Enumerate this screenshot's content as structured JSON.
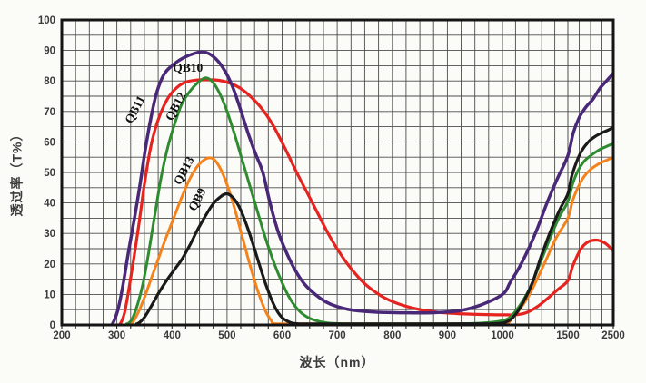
{
  "chart_data": {
    "type": "line",
    "title": "",
    "xlabel": "波长（nm）",
    "ylabel": "透过率（T%）",
    "grid": true,
    "legend_position": "labels-on-curves",
    "x_axis": {
      "unit": "nm",
      "ticks": [
        200,
        300,
        400,
        500,
        600,
        700,
        800,
        900,
        1000,
        1500,
        2500
      ],
      "segments": [
        {
          "from": 200,
          "to": 1000,
          "minor": 25
        },
        {
          "from": 1000,
          "to": 1500,
          "minor": 100
        },
        {
          "from": 1500,
          "to": 2500,
          "minor": 250
        }
      ],
      "note": "scale compressed after 1000 nm"
    },
    "y_axis": {
      "min": 0,
      "max": 100,
      "ticks": [
        0,
        10,
        20,
        30,
        40,
        50,
        60,
        70,
        80,
        90,
        100
      ],
      "minor_step": 5
    },
    "series_labels": [
      {
        "text": "QB11",
        "nm": 339,
        "pct": 70,
        "rotate": -62
      },
      {
        "text": "QB10",
        "nm": 429,
        "pct": 83,
        "rotate": 0
      },
      {
        "text": "QB12",
        "nm": 413,
        "pct": 71,
        "rotate": -62
      },
      {
        "text": "QB13",
        "nm": 428,
        "pct": 50,
        "rotate": -62
      },
      {
        "text": "QB9",
        "nm": 452,
        "pct": 40.5,
        "rotate": -62
      }
    ],
    "series": [
      {
        "name": "QB13",
        "color": "#f5831d",
        "width": 3,
        "points": [
          [
            326,
            0
          ],
          [
            336,
            3
          ],
          [
            348,
            8
          ],
          [
            360,
            14
          ],
          [
            374,
            21
          ],
          [
            388,
            28
          ],
          [
            402,
            34.5
          ],
          [
            416,
            41
          ],
          [
            430,
            47
          ],
          [
            444,
            51.5
          ],
          [
            456,
            53.8
          ],
          [
            468,
            54.8
          ],
          [
            478,
            54
          ],
          [
            490,
            50.5
          ],
          [
            502,
            45
          ],
          [
            514,
            38
          ],
          [
            526,
            30
          ],
          [
            538,
            22
          ],
          [
            550,
            14.5
          ],
          [
            560,
            9
          ],
          [
            570,
            4.5
          ],
          [
            580,
            1.5
          ],
          [
            590,
            0.3
          ],
          [
            650,
            0
          ],
          [
            800,
            0
          ],
          [
            950,
            0
          ],
          [
            1020,
            0.5
          ],
          [
            1070,
            2
          ],
          [
            1130,
            5
          ],
          [
            1200,
            9.5
          ],
          [
            1270,
            15.5
          ],
          [
            1340,
            22
          ],
          [
            1410,
            28.5
          ],
          [
            1500,
            35
          ],
          [
            1600,
            40.5
          ],
          [
            1720,
            45
          ],
          [
            1850,
            48.5
          ],
          [
            2000,
            51
          ],
          [
            2200,
            53
          ],
          [
            2350,
            54
          ],
          [
            2500,
            55
          ]
        ]
      },
      {
        "name": "QB10",
        "color": "#e52420",
        "width": 3.2,
        "points": [
          [
            306,
            0
          ],
          [
            314,
            4
          ],
          [
            322,
            12
          ],
          [
            331,
            22
          ],
          [
            340,
            33
          ],
          [
            350,
            46
          ],
          [
            360,
            57
          ],
          [
            370,
            64.5
          ],
          [
            382,
            70.5
          ],
          [
            395,
            75
          ],
          [
            410,
            78
          ],
          [
            425,
            79.6
          ],
          [
            445,
            80.3
          ],
          [
            465,
            80.4
          ],
          [
            485,
            80.2
          ],
          [
            505,
            79.3
          ],
          [
            525,
            77.5
          ],
          [
            545,
            74.5
          ],
          [
            565,
            70.5
          ],
          [
            585,
            65
          ],
          [
            605,
            58
          ],
          [
            625,
            50.5
          ],
          [
            645,
            43.5
          ],
          [
            665,
            36.5
          ],
          [
            685,
            29.5
          ],
          [
            705,
            23.5
          ],
          [
            725,
            18.5
          ],
          [
            750,
            13.5
          ],
          [
            780,
            9.5
          ],
          [
            810,
            7
          ],
          [
            845,
            5.2
          ],
          [
            880,
            4.2
          ],
          [
            920,
            3.7
          ],
          [
            970,
            3.4
          ],
          [
            1030,
            3.3
          ],
          [
            1100,
            3.3
          ],
          [
            1180,
            4
          ],
          [
            1260,
            5.8
          ],
          [
            1340,
            8.5
          ],
          [
            1420,
            11.5
          ],
          [
            1500,
            14.5
          ],
          [
            1600,
            19
          ],
          [
            1700,
            22.5
          ],
          [
            1800,
            25.2
          ],
          [
            1900,
            26.8
          ],
          [
            2000,
            27.6
          ],
          [
            2150,
            27.8
          ],
          [
            2300,
            27
          ],
          [
            2400,
            25.8
          ],
          [
            2500,
            24.3
          ]
        ]
      },
      {
        "name": "QB12",
        "color": "#2e8b30",
        "width": 3,
        "points": [
          [
            318,
            0
          ],
          [
            328,
            2
          ],
          [
            338,
            7
          ],
          [
            348,
            14
          ],
          [
            358,
            24
          ],
          [
            368,
            35
          ],
          [
            380,
            48
          ],
          [
            392,
            58
          ],
          [
            405,
            66
          ],
          [
            418,
            72.5
          ],
          [
            432,
            76.5
          ],
          [
            446,
            79.3
          ],
          [
            460,
            81
          ],
          [
            472,
            80
          ],
          [
            485,
            76.5
          ],
          [
            498,
            71
          ],
          [
            512,
            63.5
          ],
          [
            526,
            55
          ],
          [
            540,
            46.5
          ],
          [
            554,
            38
          ],
          [
            568,
            29.5
          ],
          [
            582,
            22
          ],
          [
            596,
            15.5
          ],
          [
            610,
            10
          ],
          [
            624,
            6
          ],
          [
            640,
            3.2
          ],
          [
            658,
            1.6
          ],
          [
            680,
            0.7
          ],
          [
            720,
            0.3
          ],
          [
            800,
            0.2
          ],
          [
            900,
            0.3
          ],
          [
            970,
            0.7
          ],
          [
            1030,
            1.8
          ],
          [
            1090,
            4
          ],
          [
            1150,
            7.5
          ],
          [
            1220,
            13
          ],
          [
            1290,
            20.5
          ],
          [
            1360,
            28
          ],
          [
            1430,
            35
          ],
          [
            1500,
            40.5
          ],
          [
            1600,
            46
          ],
          [
            1720,
            50.5
          ],
          [
            1850,
            53.5
          ],
          [
            2000,
            55.5
          ],
          [
            2200,
            57.5
          ],
          [
            2350,
            58.5
          ],
          [
            2500,
            59.5
          ]
        ]
      },
      {
        "name": "QB9",
        "color": "#1a1a1a",
        "width": 3.2,
        "points": [
          [
            336,
            0
          ],
          [
            348,
            2
          ],
          [
            362,
            6
          ],
          [
            376,
            10.5
          ],
          [
            390,
            14.5
          ],
          [
            404,
            18
          ],
          [
            418,
            21.5
          ],
          [
            432,
            26
          ],
          [
            446,
            31
          ],
          [
            460,
            35.5
          ],
          [
            474,
            39.5
          ],
          [
            488,
            42
          ],
          [
            500,
            43
          ],
          [
            512,
            41.5
          ],
          [
            524,
            38
          ],
          [
            536,
            32.5
          ],
          [
            548,
            26
          ],
          [
            560,
            19
          ],
          [
            572,
            12.5
          ],
          [
            584,
            7
          ],
          [
            596,
            3.2
          ],
          [
            610,
            1.2
          ],
          [
            630,
            0.4
          ],
          [
            700,
            0.2
          ],
          [
            850,
            0.2
          ],
          [
            980,
            0.4
          ],
          [
            1040,
            1.2
          ],
          [
            1100,
            3.5
          ],
          [
            1160,
            7.5
          ],
          [
            1230,
            14
          ],
          [
            1300,
            23
          ],
          [
            1370,
            31
          ],
          [
            1440,
            38
          ],
          [
            1500,
            43
          ],
          [
            1580,
            48.5
          ],
          [
            1680,
            53
          ],
          [
            1800,
            57
          ],
          [
            1950,
            60
          ],
          [
            2100,
            61.8
          ],
          [
            2250,
            63
          ],
          [
            2400,
            64
          ],
          [
            2500,
            64.8
          ]
        ]
      },
      {
        "name": "QB11",
        "color": "#4a2878",
        "width": 3.5,
        "points": [
          [
            292,
            0
          ],
          [
            302,
            5
          ],
          [
            312,
            14
          ],
          [
            322,
            25
          ],
          [
            332,
            35
          ],
          [
            342,
            46
          ],
          [
            352,
            58
          ],
          [
            362,
            68
          ],
          [
            372,
            76
          ],
          [
            385,
            82
          ],
          [
            400,
            85
          ],
          [
            420,
            87.5
          ],
          [
            440,
            89
          ],
          [
            458,
            89.5
          ],
          [
            475,
            88
          ],
          [
            492,
            84.5
          ],
          [
            508,
            79
          ],
          [
            522,
            72
          ],
          [
            538,
            63
          ],
          [
            552,
            56
          ],
          [
            565,
            50
          ],
          [
            578,
            40
          ],
          [
            592,
            31
          ],
          [
            606,
            24.5
          ],
          [
            622,
            18.5
          ],
          [
            640,
            13.5
          ],
          [
            660,
            10
          ],
          [
            680,
            7.5
          ],
          [
            700,
            6
          ],
          [
            730,
            4.8
          ],
          [
            770,
            4.2
          ],
          [
            820,
            4
          ],
          [
            870,
            4
          ],
          [
            920,
            4.6
          ],
          [
            960,
            6.5
          ],
          [
            1000,
            10
          ],
          [
            1060,
            14
          ],
          [
            1130,
            19
          ],
          [
            1200,
            25
          ],
          [
            1270,
            32
          ],
          [
            1340,
            40
          ],
          [
            1420,
            48
          ],
          [
            1500,
            55.5
          ],
          [
            1620,
            63
          ],
          [
            1750,
            68
          ],
          [
            1900,
            71.5
          ],
          [
            2050,
            74
          ],
          [
            2200,
            77.5
          ],
          [
            2350,
            80
          ],
          [
            2500,
            82.5
          ]
        ]
      }
    ],
    "frame_color": "#151515",
    "grid_color": "#4d4d4d"
  }
}
